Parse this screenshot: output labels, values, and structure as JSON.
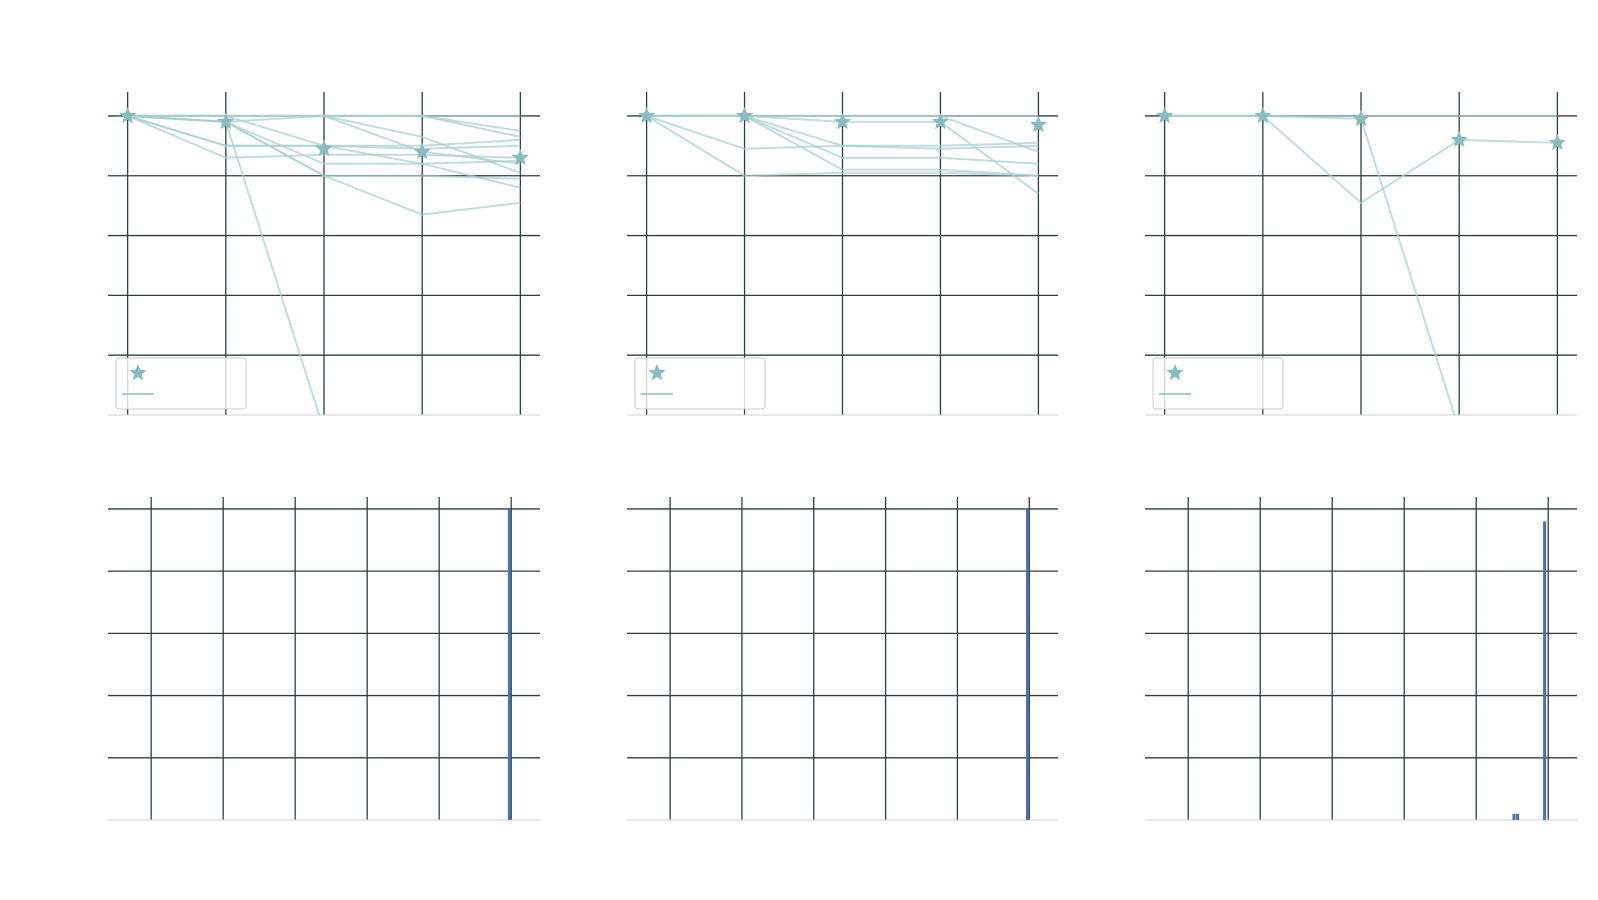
{
  "colors": {
    "background": "#ffffff",
    "grid": "#2f3f3d",
    "axis_spine": "#d0d0d0",
    "trial_line": "#a8cfcf",
    "best_marker": "#88bcc0",
    "histogram_bar": "#4a6fb5",
    "legend_border": "#cccccc"
  },
  "chart_data": [
    {
      "panel": "top-left",
      "type": "line",
      "x": [
        1,
        2,
        3,
        4,
        5
      ],
      "ylim": [
        0,
        1.08
      ],
      "xlim": [
        0.8,
        5.2
      ],
      "grid": true,
      "legend_position": "lower-left",
      "legend_entries": [
        {
          "marker": "star"
        },
        {
          "marker": "line"
        }
      ],
      "best_series": {
        "marker": "star",
        "values": [
          1.0,
          0.98,
          0.89,
          0.88,
          0.86
        ]
      },
      "trial_series": [
        {
          "values": [
            1.0,
            1.0,
            1.0,
            1.0,
            1.0
          ]
        },
        {
          "values": [
            1.0,
            0.98,
            0.8,
            0.8,
            0.79
          ]
        },
        {
          "values": [
            1.0,
            0.9,
            0.9,
            0.89,
            0.9
          ]
        },
        {
          "values": [
            1.0,
            0.86,
            0.87,
            0.87,
            0.86
          ]
        },
        {
          "values": [
            1.0,
            0.98,
            0.8,
            0.67,
            0.71
          ]
        },
        {
          "values": [
            1.0,
            0.98,
            -0.05
          ]
        },
        {
          "values": [
            1.0,
            0.98,
            1.0,
            1.0,
            0.95
          ]
        },
        {
          "values": [
            1.0,
            0.9,
            0.9,
            0.9,
            0.92
          ]
        },
        {
          "values": [
            1.0,
            1.0,
            1.0,
            0.88,
            0.84
          ]
        },
        {
          "values": [
            1.0,
            1.0,
            1.0,
            1.0,
            0.93
          ]
        },
        {
          "values": [
            1.0,
            0.98,
            0.84,
            0.84,
            0.85
          ]
        },
        {
          "values": [
            1.0,
            1.0,
            0.9,
            0.84,
            0.76
          ]
        },
        {
          "values": [
            1.0,
            1.0,
            1.0,
            0.93,
            0.81
          ]
        }
      ]
    },
    {
      "panel": "top-middle",
      "type": "line",
      "x": [
        1,
        2,
        3,
        4,
        5
      ],
      "ylim": [
        0,
        1.08
      ],
      "xlim": [
        0.8,
        5.2
      ],
      "grid": true,
      "legend_position": "lower-left",
      "legend_entries": [
        {
          "marker": "star"
        },
        {
          "marker": "line"
        }
      ],
      "best_series": {
        "marker": "star",
        "values": [
          1.0,
          1.0,
          0.98,
          0.98,
          0.97
        ]
      },
      "trial_series": [
        {
          "values": [
            1.0,
            1.0,
            1.0,
            1.0,
            1.0
          ]
        },
        {
          "values": [
            1.0,
            0.89,
            0.9,
            0.89,
            0.9
          ]
        },
        {
          "values": [
            1.0,
            0.8,
            0.81,
            0.81,
            0.8
          ]
        },
        {
          "values": [
            1.0,
            1.0,
            0.86,
            0.86,
            0.84
          ]
        },
        {
          "values": [
            1.0,
            1.0,
            0.82,
            0.82,
            0.8
          ]
        },
        {
          "values": [
            1.0,
            1.0,
            0.98,
            0.98,
            0.74
          ]
        },
        {
          "values": [
            1.0,
            1.0,
            1.0,
            1.0,
            0.88
          ]
        },
        {
          "values": [
            1.0,
            1.0,
            0.9,
            0.9,
            0.91
          ]
        }
      ]
    },
    {
      "panel": "top-right",
      "type": "line",
      "x": [
        1,
        2,
        3,
        4,
        5
      ],
      "ylim": [
        0,
        1.08
      ],
      "xlim": [
        0.8,
        5.2
      ],
      "grid": true,
      "legend_position": "lower-left",
      "legend_entries": [
        {
          "marker": "star"
        },
        {
          "marker": "line"
        }
      ],
      "best_series": {
        "marker": "star",
        "values": [
          1.0,
          1.0,
          0.99,
          0.92,
          0.91
        ]
      },
      "trial_series": [
        {
          "values": [
            1.0,
            1.0,
            1.0,
            1.0,
            1.0
          ]
        },
        {
          "values": [
            1.0,
            1.0,
            0.71,
            0.92,
            0.91
          ]
        },
        {
          "values": [
            1.0,
            1.0,
            0.99,
            -0.05
          ]
        }
      ]
    },
    {
      "panel": "bottom-left",
      "type": "bar",
      "xlim": [
        -0.12,
        1.08
      ],
      "ylim": [
        0,
        1.0
      ],
      "grid": true,
      "bins": [
        {
          "x": 0.995,
          "value": 1.0
        }
      ]
    },
    {
      "panel": "bottom-middle",
      "type": "bar",
      "xlim": [
        -0.12,
        1.08
      ],
      "ylim": [
        0,
        1.0
      ],
      "grid": true,
      "bins": [
        {
          "x": 0.995,
          "value": 1.0
        }
      ]
    },
    {
      "panel": "bottom-right",
      "type": "bar",
      "xlim": [
        -0.12,
        1.08
      ],
      "ylim": [
        0,
        1.0
      ],
      "grid": true,
      "bins": [
        {
          "x": 0.905,
          "value": 0.02
        },
        {
          "x": 0.915,
          "value": 0.02
        },
        {
          "x": 0.99,
          "value": 0.96
        }
      ]
    }
  ]
}
